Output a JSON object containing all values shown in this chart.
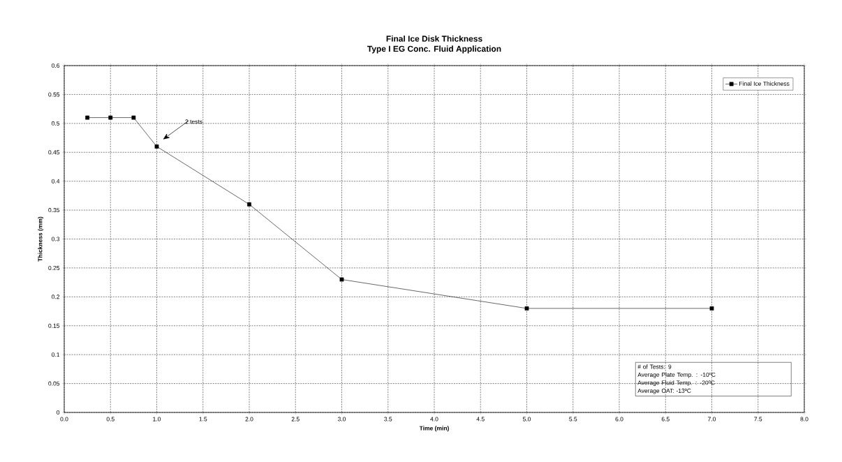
{
  "chart_data": {
    "type": "line",
    "title": "Final Ice Disk Thickness",
    "subtitle": "Type I EG Conc. Fluid Application",
    "xlabel": "Time (min)",
    "ylabel": "Thickness (mm)",
    "x": [
      0.25,
      0.5,
      0.75,
      1,
      2,
      3,
      5,
      7
    ],
    "series": [
      {
        "name": "Final Ice Thickness",
        "color": "#000000",
        "values": [
          0.51,
          0.51,
          0.51,
          0.46,
          0.36,
          0.23,
          0.18,
          0.18
        ]
      }
    ],
    "xlim": [
      0,
      8
    ],
    "ylim": [
      0,
      0.6
    ],
    "xticks": [
      {
        "value": 0,
        "label": "0.0"
      },
      {
        "value": 0.5,
        "label": "0.5"
      },
      {
        "value": 1,
        "label": "1.0"
      },
      {
        "value": 1.5,
        "label": "1.5"
      },
      {
        "value": 2,
        "label": "2.0"
      },
      {
        "value": 2.5,
        "label": "2.5"
      },
      {
        "value": 3,
        "label": "3.0"
      },
      {
        "value": 3.5,
        "label": "3.5"
      },
      {
        "value": 4,
        "label": "4.0"
      },
      {
        "value": 4.5,
        "label": "4.5"
      },
      {
        "value": 5,
        "label": "5.0"
      },
      {
        "value": 5.5,
        "label": "5.5"
      },
      {
        "value": 6,
        "label": "6.0"
      },
      {
        "value": 6.5,
        "label": "6.5"
      },
      {
        "value": 7,
        "label": "7.0"
      },
      {
        "value": 7.5,
        "label": "7.5"
      },
      {
        "value": 8,
        "label": "8.0"
      }
    ],
    "yticks": [
      0,
      0.05,
      0.1,
      0.15,
      0.2,
      0.25,
      0.3,
      0.35,
      0.4,
      0.45,
      0.5,
      0.55,
      0.6
    ],
    "grid": true,
    "legend": "top right",
    "marker": "square",
    "line_style": "solid",
    "annotations": [
      "2 tests",
      "# of Tests: 9",
      "Average Plate Temp. : -10ºC",
      "Average Fluid Temp. : -20ºC",
      "Average OAT: -13ºC"
    ]
  }
}
